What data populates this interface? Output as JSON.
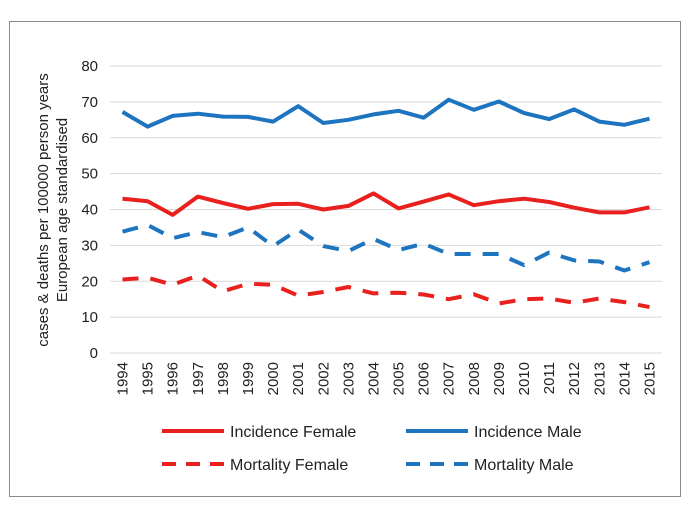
{
  "chart_data": {
    "type": "line",
    "ylabel_lines": [
      "cases & deaths per 100000 person years",
      "European age standardised"
    ],
    "ylim": [
      0,
      80
    ],
    "yticks": [
      0,
      10,
      20,
      30,
      40,
      50,
      60,
      70,
      80
    ],
    "grid": true,
    "legend_position": "bottom",
    "categories": [
      "1994",
      "1995",
      "1996",
      "1997",
      "1998",
      "1999",
      "2000",
      "2001",
      "2002",
      "2003",
      "2004",
      "2005",
      "2006",
      "2007",
      "2008",
      "2009",
      "2010",
      "2011",
      "2012",
      "2013",
      "2014",
      "2015"
    ],
    "series": [
      {
        "name": "Incidence Female",
        "color": "#e8201e",
        "dash": "solid",
        "values": [
          43,
          42.3,
          38.5,
          43.6,
          41.8,
          40.2,
          41.5,
          41.6,
          40,
          41,
          44.5,
          40.3,
          42.2,
          44.2,
          41.2,
          42.3,
          43,
          42.1,
          40.5,
          39.2,
          39.2,
          40.6
        ]
      },
      {
        "name": "Incidence Male",
        "color": "#1d74bf",
        "dash": "solid",
        "values": [
          67.2,
          63.1,
          66.1,
          66.7,
          65.9,
          65.8,
          64.5,
          68.8,
          64.1,
          65,
          66.5,
          67.5,
          65.6,
          70.6,
          67.8,
          70.1,
          66.9,
          65.2,
          67.9,
          64.5,
          63.6,
          65.3
        ]
      },
      {
        "name": "Mortality Female",
        "color": "#e8201e",
        "dash": "dashed",
        "values": [
          20.5,
          21,
          19,
          21.6,
          17.2,
          19.3,
          19,
          16,
          17,
          18.4,
          16.6,
          16.8,
          16.3,
          15,
          16.4,
          13.8,
          15,
          15.2,
          14,
          15.2,
          14.2,
          12.8
        ]
      },
      {
        "name": "Mortality Male",
        "color": "#1d74bf",
        "dash": "dashed",
        "values": [
          33.8,
          35.7,
          32,
          33.7,
          32.3,
          35,
          29.8,
          34.4,
          29.8,
          28.4,
          31.8,
          28.7,
          30.5,
          27.6,
          27.6,
          27.6,
          24.5,
          28,
          25.8,
          25.5,
          23,
          25.3
        ]
      }
    ]
  }
}
